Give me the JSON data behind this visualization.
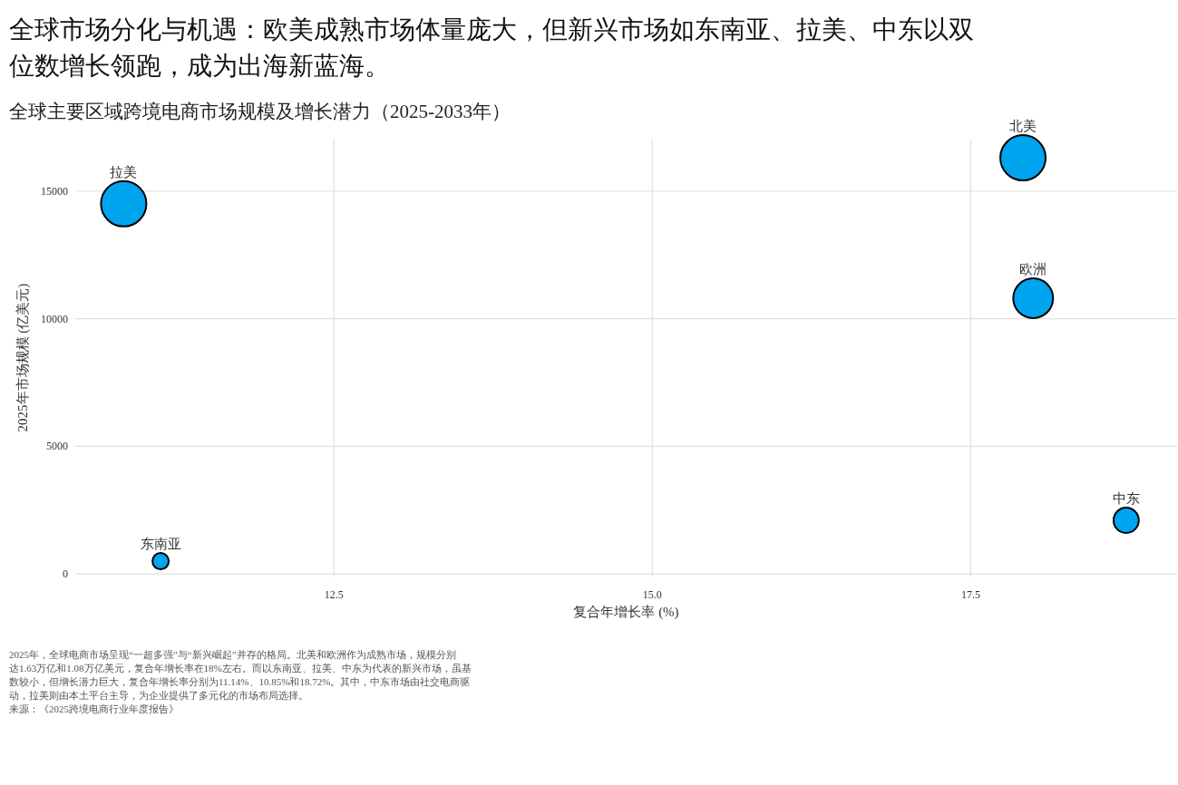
{
  "chart_data": {
    "type": "bubble",
    "title": "全球市场分化与机遇：欧美成熟市场体量庞大，但新兴市场如东南亚、拉美、中东以双位数增长领跑，成为出海新蓝海。",
    "subtitle": "全球主要区域跨境电商市场规模及增长潜力（2025-2033年）",
    "xlabel": "复合年增长率 (%)",
    "ylabel": "2025年市场规模 (亿美元)",
    "series": [
      {
        "name": "拉美",
        "color": "#00a5ef",
        "x": [
          10.85
        ],
        "values": [
          14500
        ],
        "sizes": [
          1
        ]
      },
      {
        "name": "东南亚",
        "color": "#00a5ef",
        "x": [
          11.14
        ],
        "values": [
          500
        ],
        "sizes": [
          0.13
        ]
      },
      {
        "name": "北美",
        "color": "#00a5ef",
        "x": [
          17.91
        ],
        "values": [
          16300
        ],
        "sizes": [
          1
        ]
      },
      {
        "name": "欧洲",
        "color": "#00a5ef",
        "x": [
          17.99
        ],
        "values": [
          10800
        ],
        "sizes": [
          0.77
        ]
      },
      {
        "name": "中东",
        "color": "#00a5ef",
        "x": [
          18.72
        ],
        "values": [
          2100
        ],
        "sizes": [
          0.31
        ]
      }
    ],
    "xlim": [
      10.47,
      19.12
    ],
    "xticks": [
      {
        "value": 12.5,
        "label": "12.5"
      },
      {
        "value": 15,
        "label": "15.0"
      },
      {
        "value": 17.5,
        "label": "17.5"
      }
    ],
    "ylim": [
      -100,
      17050
    ],
    "yticks": [
      0,
      5000,
      10000,
      15000
    ],
    "grid": true,
    "annotations": [
      "2025年，全球电商市场呈现“一超多强”与“新兴崛起”并存的格局。北美和欧洲作为成熟市场，规模分别达1.63万亿和1.08万亿美元，复合年增长率在18%左右。而以东南亚、拉美、中东为代表的新兴市场，虽基数较小，但增长潜力巨大，复合年增长率分别为11.14%、10.85%和18.72%。其中，中东市场由社交电商驱动，拉美则由本土平台主导，为企业提供了多元化的市场布局选择。",
      "来源：《2025跨境电商行业年度报告》"
    ]
  }
}
